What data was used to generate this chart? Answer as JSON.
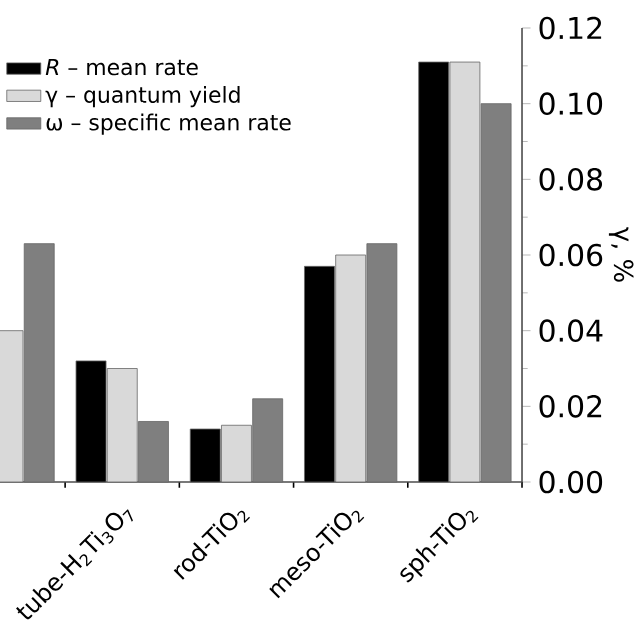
{
  "chart_data": {
    "type": "bar",
    "ylabel": "γ, %",
    "legend": "top left",
    "grid": false,
    "categories": [
      null,
      "tube-H$_{2}$Ti$_{3}$O$_{7}$",
      "rod-TiO$_{2}$",
      "meso-TiO$_{2}$",
      "sph-TiO$_{2}$"
    ],
    "series": [
      {
        "name": "*R* – mean rate",
        "color": "#000000",
        "values": [
          null,
          0.032,
          0.014,
          0.057,
          0.111
        ]
      },
      {
        "name": "γ – quantum yield",
        "color": "#d9d9d9",
        "values": [
          0.04,
          0.03,
          0.015,
          0.06,
          0.111
        ]
      },
      {
        "name": "ω – specific mean rate",
        "color": "#7f7f7f",
        "values": [
          0.063,
          0.016,
          0.022,
          0.063,
          0.1
        ]
      }
    ],
    "ylim": [
      0,
      0.12
    ],
    "yticks": [
      {
        "value": 0,
        "label": "0.00"
      },
      {
        "value": 0.02,
        "label": "0.02"
      },
      {
        "value": 0.04,
        "label": "0.04"
      },
      {
        "value": 0.06,
        "label": "0.06"
      },
      {
        "value": 0.08,
        "label": "0.08"
      },
      {
        "value": 0.1,
        "label": "0.10"
      },
      {
        "value": 0.12,
        "label": "0.12"
      }
    ]
  }
}
